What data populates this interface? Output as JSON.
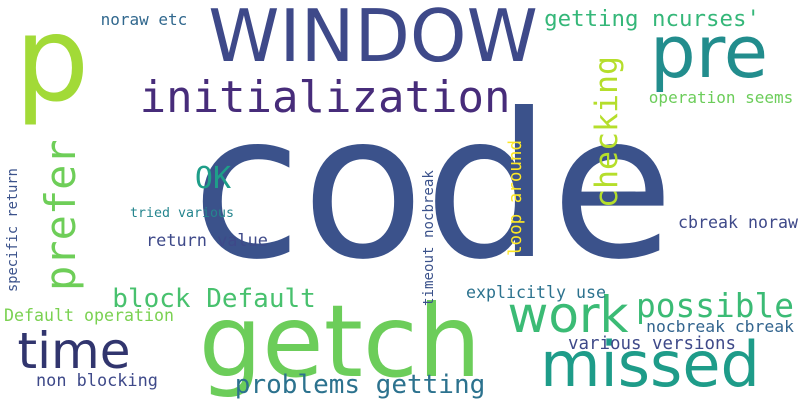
{
  "words": [
    {
      "key": "code",
      "text": "code",
      "color": "#3b528b"
    },
    {
      "key": "p",
      "text": "p",
      "color": "#a2da37"
    },
    {
      "key": "window",
      "text": "WINDOW",
      "color": "#3e4989"
    },
    {
      "key": "pre",
      "text": "pre",
      "color": "#228d8d"
    },
    {
      "key": "initialization",
      "text": "initialization",
      "color": "#472c7a"
    },
    {
      "key": "getch",
      "text": "getch",
      "color": "#6ccd5a"
    },
    {
      "key": "missed",
      "text": "missed",
      "color": "#1e9c89"
    },
    {
      "key": "time",
      "text": "time",
      "color": "#31356e"
    },
    {
      "key": "work",
      "text": "work",
      "color": "#3bbb75"
    },
    {
      "key": "prefer",
      "text": "prefer",
      "color": "#6ece58"
    },
    {
      "key": "checking",
      "text": "checking",
      "color": "#b5de2b"
    },
    {
      "key": "possible",
      "text": "possible",
      "color": "#3bbb75"
    },
    {
      "key": "ok",
      "text": "OK",
      "color": "#1f9e89"
    },
    {
      "key": "getting_ncurses",
      "text": "getting ncurses'",
      "color": "#35b779"
    },
    {
      "key": "block_default",
      "text": "block Default",
      "color": "#48c16e"
    },
    {
      "key": "problems_getting",
      "text": "problems getting",
      "color": "#2c728e"
    },
    {
      "key": "noraw_etc",
      "text": "noraw etc",
      "color": "#31688e"
    },
    {
      "key": "operation_seems",
      "text": "operation seems",
      "color": "#6ccd5a"
    },
    {
      "key": "tried_various",
      "text": "tried various",
      "color": "#25858e"
    },
    {
      "key": "return_value",
      "text": "return value",
      "color": "#3e4989"
    },
    {
      "key": "timeout_nocbreak",
      "text": "timeout nocbreak",
      "color": "#3b528b"
    },
    {
      "key": "loop_around",
      "text": "loop around",
      "color": "#fde725"
    },
    {
      "key": "cbreak_noraw",
      "text": "cbreak noraw",
      "color": "#3e4989"
    },
    {
      "key": "specific_return",
      "text": "specific return",
      "color": "#3b528b"
    },
    {
      "key": "default_operation",
      "text": "Default operation",
      "color": "#7ad151"
    },
    {
      "key": "explicitly_use",
      "text": "explicitly use",
      "color": "#2c728e"
    },
    {
      "key": "nocbreak_cbreak",
      "text": "nocbreak cbreak",
      "color": "#32648e"
    },
    {
      "key": "various_versions",
      "text": "various versions",
      "color": "#3e4989"
    },
    {
      "key": "non_blocking",
      "text": "non blocking",
      "color": "#3e4989"
    }
  ]
}
